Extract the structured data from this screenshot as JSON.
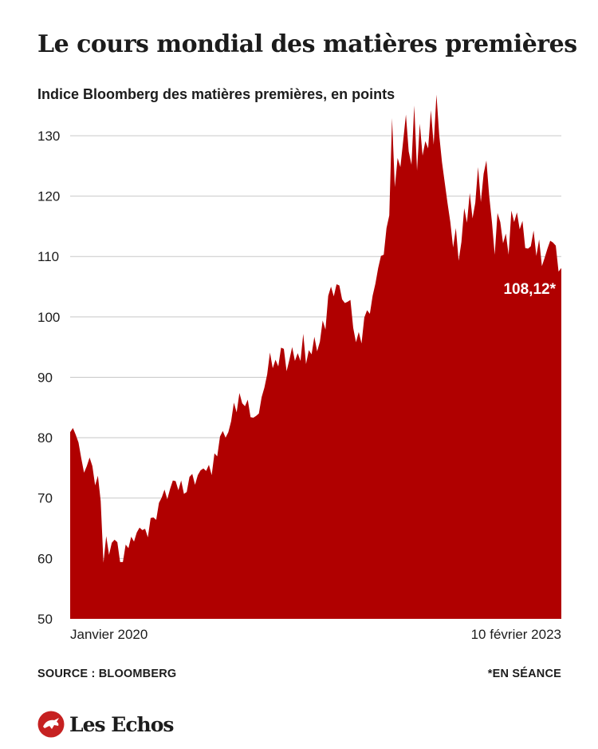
{
  "header": {
    "title": "Le cours mondial des matières premières",
    "subtitle": "Indice Bloomberg des matières premières, en points"
  },
  "footer": {
    "source": "SOURCE : BLOOMBERG",
    "note": "*EN SÉANCE"
  },
  "brand": {
    "name": "Les Echos",
    "color": "#c62121"
  },
  "colors": {
    "area": "#b00000",
    "grid": "#c8c8c8",
    "text": "#1c1c1c"
  },
  "chart_data": {
    "type": "area",
    "title": "Le cours mondial des matières premières",
    "subtitle": "Indice Bloomberg des matières premières, en points",
    "xlabel": "",
    "ylabel": "",
    "ylim": [
      50,
      137
    ],
    "yticks": [
      50,
      60,
      70,
      80,
      90,
      100,
      110,
      120,
      130
    ],
    "x_tick_labels": [
      "Janvier 2020",
      "10 février 2023"
    ],
    "grid": true,
    "annotation": {
      "text": "108,12*",
      "value": 108.12
    },
    "series": [
      {
        "values": [
          80.9,
          81.6,
          80.5,
          79.2,
          76.6,
          74.2,
          75.3,
          76.7,
          75.3,
          72.1,
          73.7,
          69.5,
          59.3,
          63.7,
          60.6,
          62.6,
          63.1,
          62.7,
          59.4,
          59.4,
          62.3,
          61.7,
          63.6,
          62.8,
          64.3,
          65.1,
          64.7,
          64.9,
          63.5,
          66.7,
          66.8,
          66.4,
          69.2,
          70.1,
          71.4,
          69.8,
          71.5,
          72.9,
          72.8,
          71.3,
          72.9,
          70.7,
          71.0,
          73.5,
          74.0,
          72.2,
          73.8,
          74.6,
          74.9,
          74.5,
          75.5,
          73.8,
          77.4,
          76.9,
          80.2,
          81.1,
          80.0,
          80.9,
          82.7,
          85.8,
          84.2,
          87.4,
          85.7,
          85.2,
          86.3,
          83.4,
          83.3,
          83.6,
          84.0,
          86.7,
          88.3,
          90.5,
          94.1,
          91.5,
          92.9,
          91.8,
          94.9,
          94.7,
          91.0,
          92.9,
          95.0,
          92.7,
          94.0,
          92.7,
          97.2,
          92.2,
          94.5,
          93.8,
          96.7,
          94.3,
          95.9,
          99.4,
          97.9,
          103.5,
          105.0,
          103.4,
          105.4,
          105.2,
          102.9,
          102.3,
          102.5,
          102.8,
          98.2,
          95.8,
          97.5,
          95.6,
          99.9,
          101.1,
          100.5,
          103.5,
          105.5,
          108.1,
          110.1,
          110.3,
          114.7,
          116.8,
          132.9,
          121.5,
          126.3,
          124.8,
          129.1,
          133.5,
          127.4,
          125.2,
          135.0,
          124.2,
          132.0,
          126.7,
          129.1,
          127.9,
          134.2,
          128.5,
          136.8,
          130.1,
          125.6,
          122.2,
          118.8,
          115.7,
          111.5,
          114.7,
          109.3,
          112.4,
          118.0,
          115.6,
          120.5,
          116.3,
          118.9,
          124.8,
          119.0,
          123.7,
          125.9,
          120.1,
          115.7,
          110.3,
          117.2,
          115.7,
          112.2,
          113.8,
          110.3,
          117.6,
          115.7,
          117.3,
          114.5,
          115.9,
          111.4,
          111.3,
          111.7,
          114.3,
          110.1,
          112.8,
          108.4,
          109.8,
          111.3,
          112.6,
          112.3,
          111.8,
          107.5,
          108.1
        ]
      }
    ]
  }
}
